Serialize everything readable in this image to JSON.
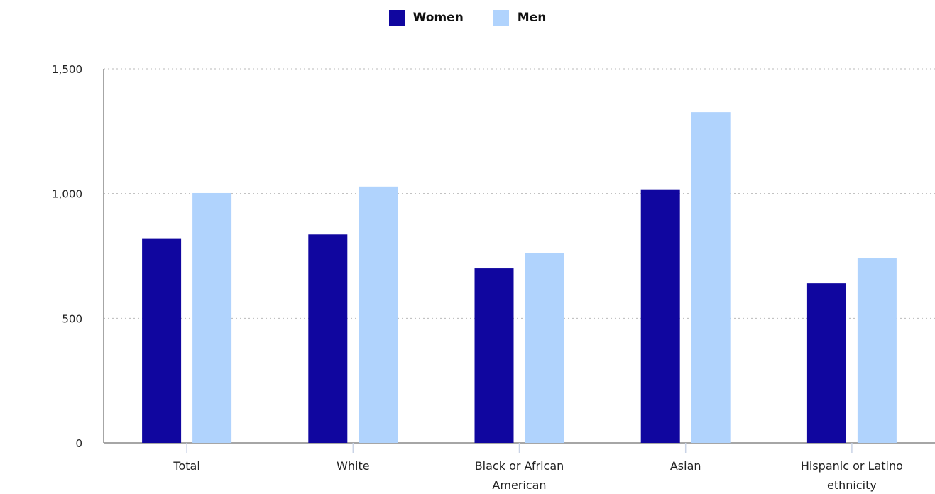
{
  "chart_data": {
    "type": "bar",
    "categories": [
      "Total",
      "White",
      "Black or African American",
      "Asian",
      "Hispanic or Latino ethnicity"
    ],
    "category_label_lines": [
      [
        "Total"
      ],
      [
        "White"
      ],
      [
        "Black or African",
        "American"
      ],
      [
        "Asian"
      ],
      [
        "Hispanic or Latino",
        "ethnicity"
      ]
    ],
    "series": [
      {
        "name": "Women",
        "color": "#10069f",
        "values": [
          818,
          836,
          700,
          1017,
          640
        ]
      },
      {
        "name": "Men",
        "color": "#b0d3fd",
        "values": [
          1002,
          1028,
          762,
          1326,
          740
        ]
      }
    ],
    "ylim": [
      0,
      1500
    ],
    "y_ticks": [
      0,
      500,
      1000,
      1500
    ],
    "y_tick_labels": [
      "0",
      "500",
      "1,000",
      "1,500"
    ],
    "title": "",
    "xlabel": "",
    "ylabel": "",
    "grid": true,
    "legend_position": "top-center"
  }
}
